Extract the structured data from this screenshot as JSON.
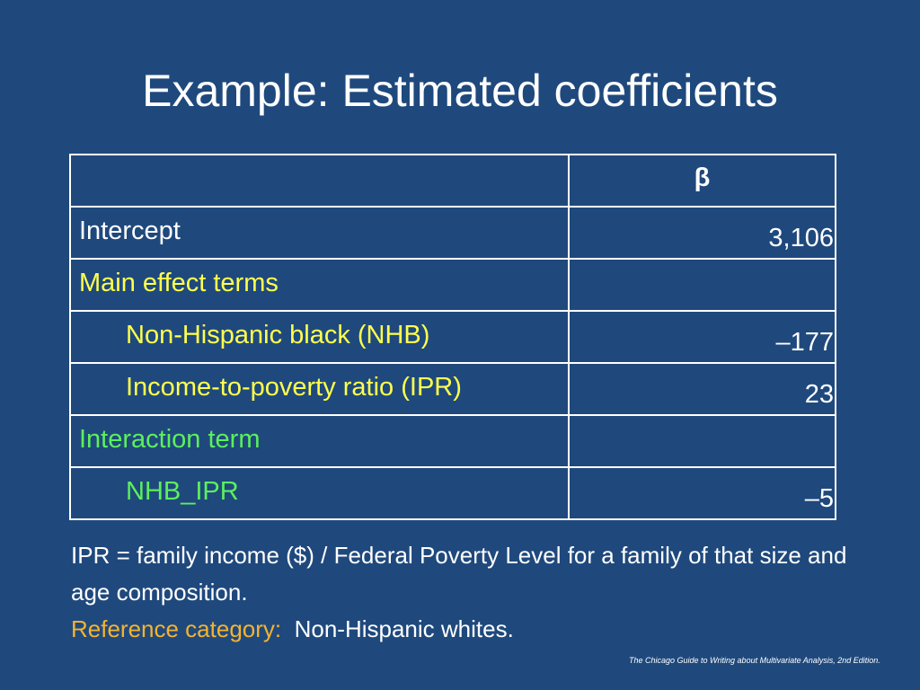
{
  "header": {
    "title": "Example: Estimated coefficients"
  },
  "table": {
    "column_header": "β",
    "rows": [
      [
        "Intercept",
        "3,106"
      ],
      [
        "Main effect terms"
      ],
      [
        "Non-Hispanic black (NHB)",
        "–177"
      ],
      [
        "Income-to-poverty ratio (IPR)",
        "23"
      ],
      [
        "Interaction term"
      ],
      [
        "NHB_IPR",
        "–5"
      ]
    ]
  },
  "note": {
    "definition": "IPR = family income ($) / Federal Poverty Level for a family of that size and age composition.",
    "reference_label": "Reference category:",
    "reference_value": "Non-Hispanic whites."
  },
  "source": "The Chicago Guide to Writing about Multivariate Analysis, 2nd Edition."
}
